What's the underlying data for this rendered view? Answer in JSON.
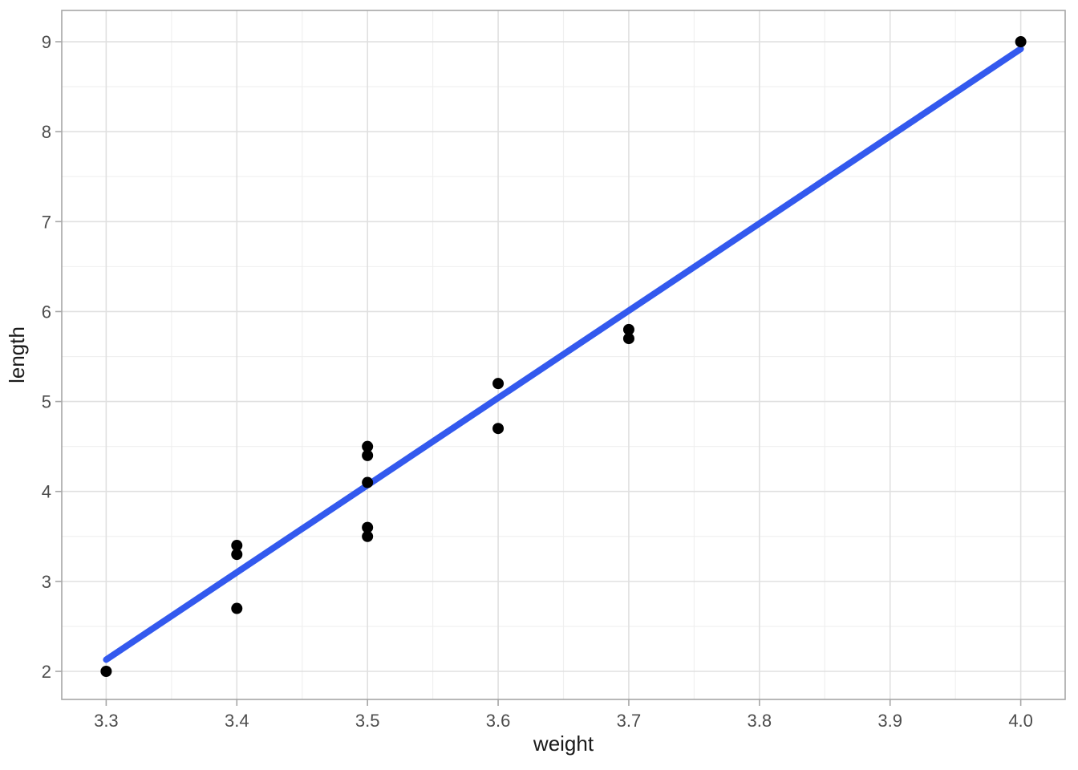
{
  "chart_data": {
    "type": "scatter",
    "title": "",
    "x_axis": {
      "title": "weight",
      "tick_values": [
        3.3,
        3.4,
        3.5,
        3.6,
        3.7,
        3.8,
        3.9,
        4.0
      ],
      "tick_labels": [
        "3.3",
        "3.4",
        "3.5",
        "3.6",
        "3.7",
        "3.8",
        "3.9",
        "4.0"
      ],
      "minor_tick_values": [
        3.35,
        3.45,
        3.55,
        3.65,
        3.75,
        3.85,
        3.95
      ],
      "range": [
        3.266,
        4.034
      ]
    },
    "y_axis": {
      "title": "length",
      "tick_values": [
        2,
        3,
        4,
        5,
        6,
        7,
        8,
        9
      ],
      "tick_labels": [
        "2",
        "3",
        "4",
        "5",
        "6",
        "7",
        "8",
        "9"
      ],
      "minor_tick_values": [
        2.5,
        3.5,
        4.5,
        5.5,
        6.5,
        7.5,
        8.5
      ],
      "range": [
        1.688,
        9.348
      ]
    },
    "points": [
      [
        3.3,
        2.0
      ],
      [
        3.4,
        3.4
      ],
      [
        3.4,
        3.3
      ],
      [
        3.4,
        2.7
      ],
      [
        3.5,
        4.5
      ],
      [
        3.5,
        4.4
      ],
      [
        3.5,
        4.1
      ],
      [
        3.5,
        3.6
      ],
      [
        3.5,
        3.5
      ],
      [
        3.6,
        5.2
      ],
      [
        3.6,
        4.7
      ],
      [
        3.7,
        5.8
      ],
      [
        3.7,
        5.7
      ],
      [
        4.0,
        9.0
      ]
    ],
    "trend_line": {
      "kind": "linear-fit",
      "x1": 3.3,
      "y1": 2.13,
      "x2": 4.0,
      "y2": 8.92
    },
    "style": {
      "point_color": "#000000",
      "line_color": "#3359EE",
      "grid_major_color": "#E0E0E0",
      "grid_minor_color": "#EFEFEF",
      "panel_border_color": "#A6A6A6",
      "tick_mark_color": "#A6A6A6",
      "tick_label_color": "#4D4D4D",
      "background_color": "#FFFFFF",
      "grid": "on",
      "legend": "none"
    }
  }
}
